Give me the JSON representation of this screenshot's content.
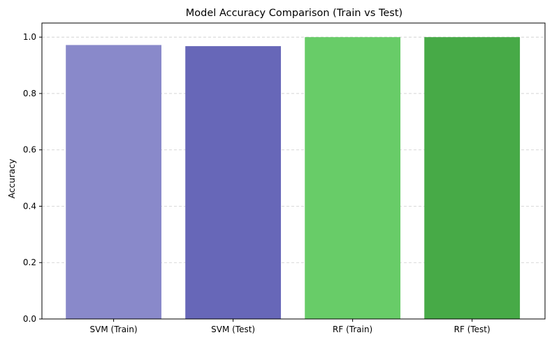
{
  "chart_data": {
    "type": "bar",
    "title": "Model Accuracy Comparison (Train vs Test)",
    "xlabel": "",
    "ylabel": "Accuracy",
    "categories": [
      "SVM (Train)",
      "SVM (Test)",
      "RF (Train)",
      "RF (Test)"
    ],
    "values": [
      0.972,
      0.968,
      1.0,
      1.0
    ],
    "colors": [
      "#8989ca",
      "#6767b8",
      "#68cc68",
      "#47aa47"
    ],
    "ylim": [
      0,
      1.05
    ],
    "yticks": [
      "0.0",
      "0.2",
      "0.4",
      "0.6",
      "0.8",
      "1.0"
    ],
    "ytick_values": [
      0.0,
      0.2,
      0.4,
      0.6,
      0.8,
      1.0
    ],
    "grid": "y-dashed"
  }
}
